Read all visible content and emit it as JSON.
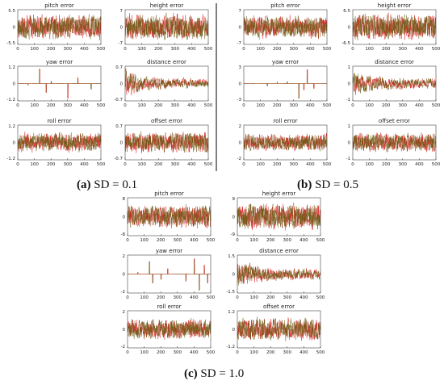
{
  "captions": [
    {
      "label": "(a)",
      "text": "SD = 0.1"
    },
    {
      "label": "(b)",
      "text": "SD = 0.5"
    },
    {
      "label": "(c)",
      "text": "SD = 1.0"
    }
  ],
  "colors": {
    "series_a": "#d81b1b",
    "series_b": "#6b5c14",
    "background": "#ffffff"
  },
  "chart_data": [
    {
      "type": "line",
      "group": "a",
      "title": "pitch error",
      "xlim": [
        0,
        500
      ],
      "xticks": [
        0,
        100,
        200,
        300,
        400,
        500
      ],
      "ylim": [
        -5.5,
        5.5
      ],
      "ytick_labels": [
        "5.5",
        "0",
        "-5.5"
      ],
      "grid": false,
      "style": "noise",
      "amplitude": 0.7
    },
    {
      "type": "line",
      "group": "a",
      "title": "height error",
      "xlim": [
        0,
        500
      ],
      "xticks": [
        0,
        100,
        200,
        300,
        400,
        500
      ],
      "ylim": [
        -7,
        7
      ],
      "ytick_labels": [
        "7",
        "0",
        "-7"
      ],
      "grid": false,
      "style": "noise",
      "amplitude": 0.75
    },
    {
      "type": "line",
      "group": "a",
      "title": "yaw error",
      "xlim": [
        0,
        500
      ],
      "xticks": [
        0,
        100,
        200,
        300,
        400,
        500
      ],
      "ylim": [
        -1.2,
        1.2
      ],
      "ytick_labels": [
        "1.2",
        "0",
        "-1.2"
      ],
      "grid": false,
      "style": "spikes",
      "spikes": [
        [
          130,
          0.9
        ],
        [
          170,
          -0.55
        ],
        [
          300,
          -0.9
        ],
        [
          360,
          0.35
        ],
        [
          440,
          -0.35
        ],
        [
          200,
          0.15
        ],
        [
          60,
          -0.1
        ]
      ]
    },
    {
      "type": "line",
      "group": "a",
      "title": "distance error",
      "xlim": [
        0,
        500
      ],
      "xticks": [
        0,
        100,
        200,
        300,
        400,
        500
      ],
      "ylim": [
        -0.7,
        0.7
      ],
      "ytick_labels": [
        "0.7",
        "0",
        "-0.7"
      ],
      "grid": false,
      "style": "decay",
      "amplitude": 0.8
    },
    {
      "type": "line",
      "group": "a",
      "title": "roll error",
      "xlim": [
        0,
        500
      ],
      "xticks": [
        0,
        100,
        200,
        300,
        400,
        500
      ],
      "ylim": [
        -1.2,
        1.2
      ],
      "ytick_labels": [
        "1.2",
        "0",
        "-1.2"
      ],
      "grid": false,
      "style": "noise",
      "amplitude": 0.55
    },
    {
      "type": "line",
      "group": "a",
      "title": "offset error",
      "xlim": [
        0,
        500
      ],
      "xticks": [
        0,
        100,
        200,
        300,
        400,
        500
      ],
      "ylim": [
        -0.7,
        0.7
      ],
      "ytick_labels": [
        "0.7",
        "0",
        "-0.7"
      ],
      "grid": false,
      "style": "noise",
      "amplitude": 0.6
    },
    {
      "type": "line",
      "group": "b",
      "title": "pitch error",
      "xlim": [
        0,
        500
      ],
      "xticks": [
        0,
        100,
        200,
        300,
        400,
        500
      ],
      "ylim": [
        -7,
        7
      ],
      "ytick_labels": [
        "7",
        "0",
        "-7"
      ],
      "grid": false,
      "style": "noise",
      "amplitude": 0.65
    },
    {
      "type": "line",
      "group": "b",
      "title": "height error",
      "xlim": [
        0,
        500
      ],
      "xticks": [
        0,
        100,
        200,
        300,
        400,
        500
      ],
      "ylim": [
        -6.5,
        6.5
      ],
      "ytick_labels": [
        "6.5",
        "0",
        "-6.5"
      ],
      "grid": false,
      "style": "noise",
      "amplitude": 0.75
    },
    {
      "type": "line",
      "group": "b",
      "title": "yaw error",
      "xlim": [
        0,
        500
      ],
      "xticks": [
        0,
        100,
        200,
        300,
        400,
        500
      ],
      "ylim": [
        -3,
        3
      ],
      "ytick_labels": [
        "3",
        "0",
        "-3"
      ],
      "grid": false,
      "style": "spikes",
      "spikes": [
        [
          330,
          -0.9
        ],
        [
          380,
          0.85
        ],
        [
          360,
          -0.4
        ],
        [
          260,
          0.12
        ],
        [
          140,
          -0.15
        ],
        [
          420,
          -0.3
        ],
        [
          200,
          0.1
        ]
      ]
    },
    {
      "type": "line",
      "group": "b",
      "title": "distance error",
      "xlim": [
        0,
        500
      ],
      "xticks": [
        0,
        100,
        200,
        300,
        400,
        500
      ],
      "ylim": [
        -1,
        1
      ],
      "ytick_labels": [
        "1",
        "0",
        "-1"
      ],
      "grid": false,
      "style": "decay",
      "amplitude": 0.85
    },
    {
      "type": "line",
      "group": "b",
      "title": "roll error",
      "xlim": [
        0,
        500
      ],
      "xticks": [
        0,
        100,
        200,
        300,
        400,
        500
      ],
      "ylim": [
        -2,
        2
      ],
      "ytick_labels": [
        "2",
        "0",
        "-2"
      ],
      "grid": false,
      "style": "noise",
      "amplitude": 0.5
    },
    {
      "type": "line",
      "group": "b",
      "title": "offset error",
      "xlim": [
        0,
        500
      ],
      "xticks": [
        0,
        100,
        200,
        300,
        400,
        500
      ],
      "ylim": [
        -1,
        1
      ],
      "ytick_labels": [
        "1",
        "0",
        "-1"
      ],
      "grid": false,
      "style": "noise",
      "amplitude": 0.55
    },
    {
      "type": "line",
      "group": "c",
      "title": "pitch error",
      "xlim": [
        0,
        500
      ],
      "xticks": [
        0,
        100,
        200,
        300,
        400,
        500
      ],
      "ylim": [
        -8,
        8
      ],
      "ytick_labels": [
        "8",
        "0",
        "-8"
      ],
      "grid": false,
      "style": "noise",
      "amplitude": 0.6
    },
    {
      "type": "line",
      "group": "c",
      "title": "height error",
      "xlim": [
        0,
        500
      ],
      "xticks": [
        0,
        100,
        200,
        300,
        400,
        500
      ],
      "ylim": [
        -9,
        9
      ],
      "ytick_labels": [
        "9",
        "0",
        "-9"
      ],
      "grid": false,
      "style": "noise",
      "amplitude": 0.7
    },
    {
      "type": "line",
      "group": "c",
      "title": "yaw error",
      "xlim": [
        0,
        500
      ],
      "xticks": [
        0,
        100,
        200,
        300,
        400,
        500
      ],
      "ylim": [
        -2,
        2
      ],
      "ytick_labels": [
        "2",
        "0",
        "-2"
      ],
      "grid": false,
      "style": "spikes",
      "spikes": [
        [
          130,
          0.7
        ],
        [
          150,
          -0.5
        ],
        [
          200,
          -0.3
        ],
        [
          240,
          0.3
        ],
        [
          350,
          -0.4
        ],
        [
          400,
          0.85
        ],
        [
          430,
          -0.9
        ],
        [
          460,
          0.5
        ],
        [
          480,
          -0.5
        ],
        [
          60,
          0.1
        ]
      ]
    },
    {
      "type": "line",
      "group": "c",
      "title": "distance error",
      "xlim": [
        0,
        500
      ],
      "xticks": [
        0,
        100,
        200,
        300,
        400,
        500
      ],
      "ylim": [
        -1.5,
        1.5
      ],
      "ytick_labels": [
        "1.5",
        "0",
        "-1.5"
      ],
      "grid": false,
      "style": "decay",
      "amplitude": 0.85
    },
    {
      "type": "line",
      "group": "c",
      "title": "roll error",
      "xlim": [
        0,
        500
      ],
      "xticks": [
        0,
        100,
        200,
        300,
        400,
        500
      ],
      "ylim": [
        -2,
        2
      ],
      "ytick_labels": [
        "2",
        "0",
        "-2"
      ],
      "grid": false,
      "style": "noise",
      "amplitude": 0.55
    },
    {
      "type": "line",
      "group": "c",
      "title": "offset error",
      "xlim": [
        0,
        500
      ],
      "xticks": [
        0,
        100,
        200,
        300,
        400,
        500
      ],
      "ylim": [
        -1.2,
        1.2
      ],
      "ytick_labels": [
        "1.2",
        "0",
        "-1.2"
      ],
      "grid": false,
      "style": "noise",
      "amplitude": 0.6
    }
  ]
}
